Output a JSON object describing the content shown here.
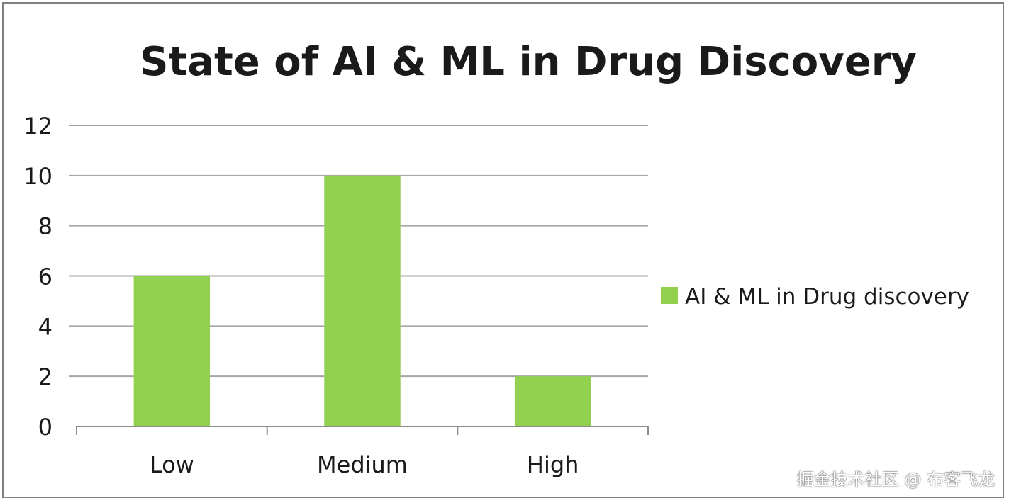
{
  "chart_data": {
    "type": "bar",
    "title": "State of AI & ML in Drug Discovery",
    "xlabel": "",
    "ylabel": "",
    "categories": [
      "Low",
      "Medium",
      "High"
    ],
    "series": [
      {
        "name": "AI & ML in Drug discovery",
        "values": [
          6,
          10,
          2
        ],
        "color": "#92d050"
      }
    ],
    "ylim": [
      0,
      12
    ],
    "yticks": [
      0,
      2,
      4,
      6,
      8,
      10,
      12
    ],
    "grid": true,
    "legend_position": "right"
  },
  "watermark": "掘金技术社区 @ 布客飞龙",
  "colors": {
    "bar": "#92d050",
    "gridline": "#a6a6a6",
    "axis": "#8c8c8c",
    "frame": "#7f7f7f"
  }
}
